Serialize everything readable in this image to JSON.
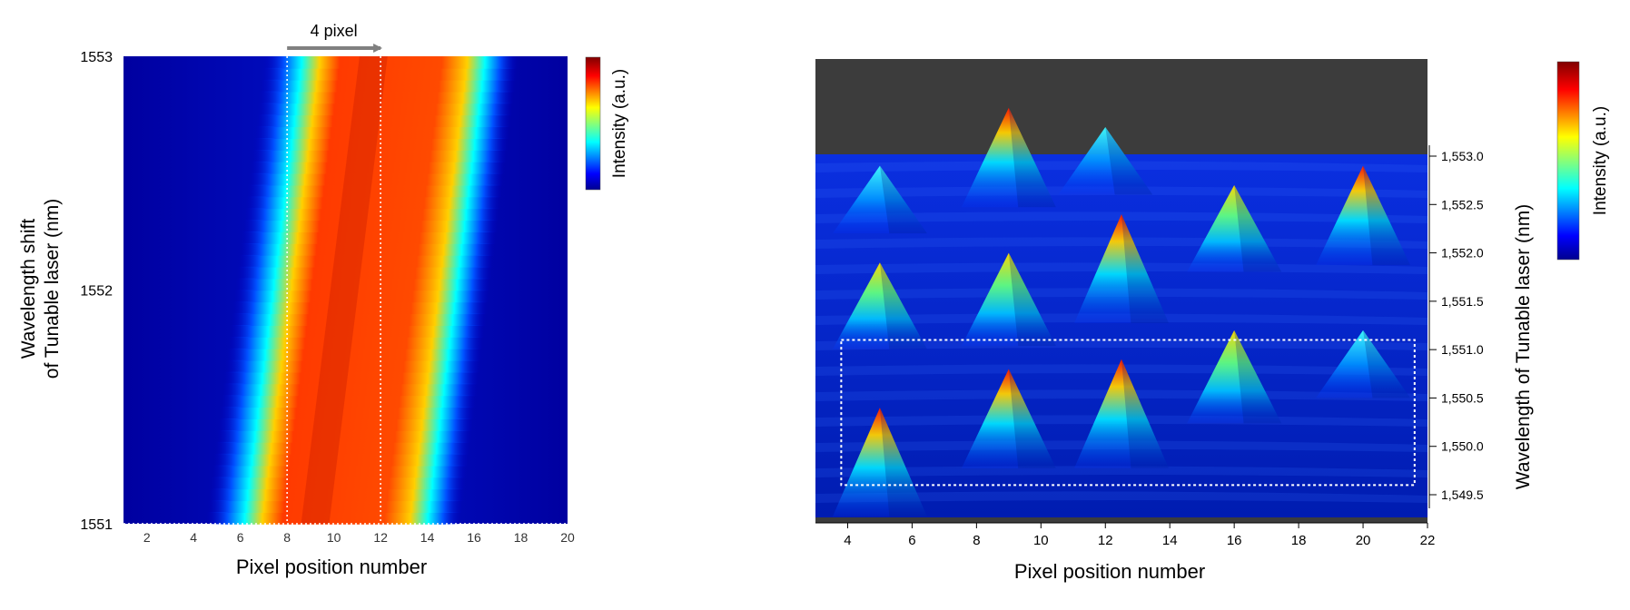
{
  "chart_data": [
    {
      "type": "heatmap",
      "title": "",
      "xlabel": "Pixel position number",
      "ylabel_lines": [
        "Wavelength shift",
        "of Tunable laser (nm)"
      ],
      "xlim": [
        1,
        20
      ],
      "ylim": [
        1551,
        1553
      ],
      "x_ticks": [
        2,
        4,
        6,
        8,
        10,
        12,
        14,
        16,
        18,
        20
      ],
      "y_ticks": [
        1551,
        1552,
        1553
      ],
      "annotation": {
        "text": "4 pixel",
        "from_x": 8,
        "to_x": 12,
        "dashed_lines_x": [
          8,
          12
        ]
      },
      "band": {
        "bottom_center_x": 10.0,
        "top_center_x": 12.5,
        "core_half_width": 3.3
      },
      "colorbar_label": "Intensity (a.u.)",
      "colors": {
        "low": "#00008f",
        "mid": "#00ffff",
        "high": "#ff3300",
        "max": "#800000"
      }
    },
    {
      "type": "surface",
      "title": "",
      "xlabel": "Pixel position number",
      "ylabel": "Wavelength of Tunable laser (nm)",
      "xlim": [
        3,
        22
      ],
      "ylim": [
        1549.2,
        1553.2
      ],
      "x_ticks": [
        4,
        6,
        8,
        10,
        12,
        14,
        16,
        18,
        20,
        22
      ],
      "y_tick_labels": [
        "1,553.0",
        "1,552.5",
        "1,552.0",
        "1,551.5",
        "1,551.0",
        "1,550.5",
        "1,550.0",
        "1,549.5"
      ],
      "y_tick_values": [
        1553.0,
        1552.5,
        1552.0,
        1551.5,
        1551.0,
        1550.5,
        1550.0,
        1549.5
      ],
      "peaks": [
        {
          "x": 9,
          "y": 1553.5,
          "intensity": 0.85
        },
        {
          "x": 12,
          "y": 1553.3,
          "intensity": 0.35
        },
        {
          "x": 5,
          "y": 1552.9,
          "intensity": 0.35
        },
        {
          "x": 12.5,
          "y": 1552.4,
          "intensity": 1.0
        },
        {
          "x": 16,
          "y": 1552.7,
          "intensity": 0.65
        },
        {
          "x": 20,
          "y": 1552.9,
          "intensity": 0.85
        },
        {
          "x": 5,
          "y": 1551.9,
          "intensity": 0.65
        },
        {
          "x": 9,
          "y": 1552.0,
          "intensity": 0.75
        },
        {
          "x": 12.5,
          "y": 1550.9,
          "intensity": 1.0
        },
        {
          "x": 16,
          "y": 1551.2,
          "intensity": 0.75
        },
        {
          "x": 20,
          "y": 1551.2,
          "intensity": 0.35
        },
        {
          "x": 5,
          "y": 1550.4,
          "intensity": 1.0
        },
        {
          "x": 9,
          "y": 1550.8,
          "intensity": 0.85
        }
      ],
      "highlight_box": {
        "x_from": 3.8,
        "x_to": 21.6,
        "y_from": 1549.6,
        "y_to": 1551.1
      },
      "colorbar_label": "Intensity (a.u.)"
    }
  ]
}
